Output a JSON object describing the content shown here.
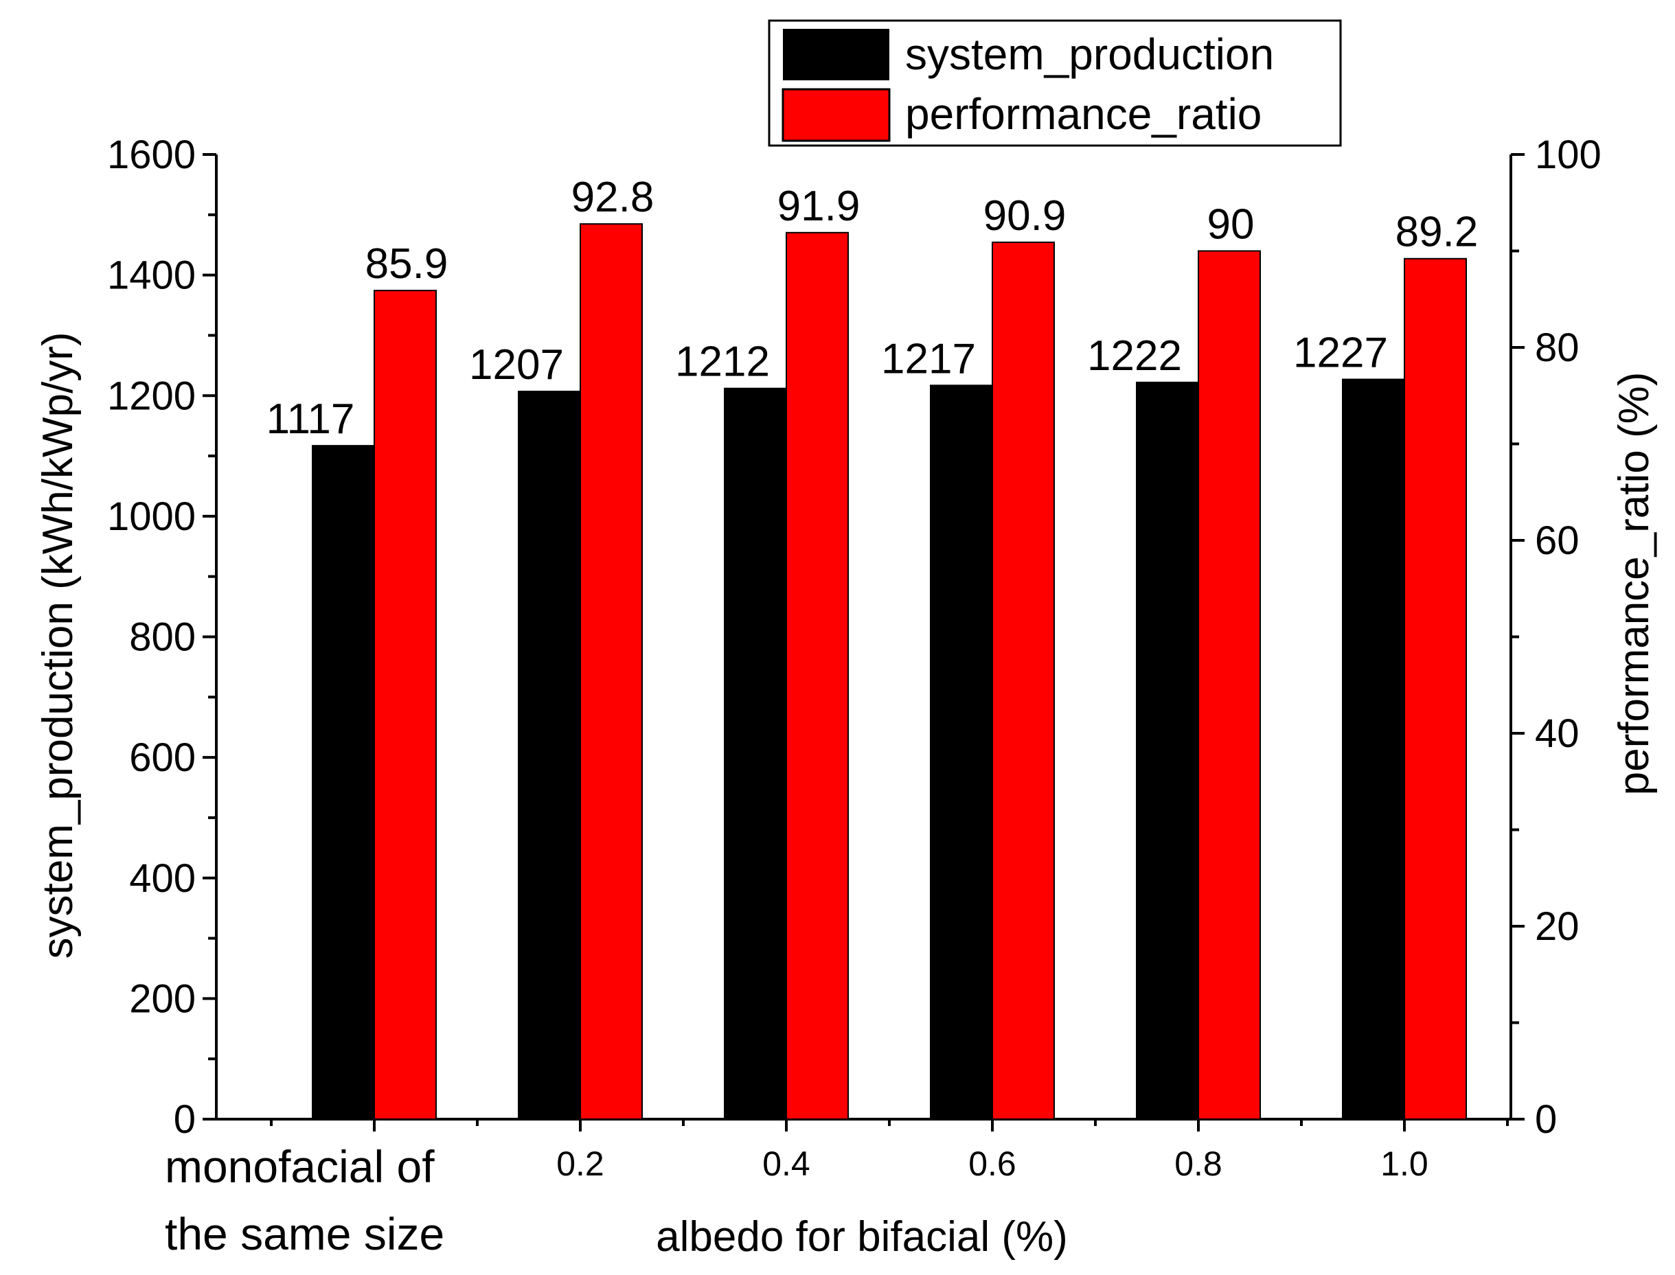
{
  "chart_data": {
    "type": "bar",
    "categories": [
      "monofacial of the same size",
      "0.2",
      "0.4",
      "0.6",
      "0.8",
      "1.0"
    ],
    "category_display": [
      [
        "monofacial of",
        "the same size"
      ],
      [
        "0.2"
      ],
      [
        "0.4"
      ],
      [
        "0.6"
      ],
      [
        "0.8"
      ],
      [
        "1.0"
      ]
    ],
    "series": [
      {
        "name": "system_production",
        "axis": "left",
        "color": "#000000",
        "values": [
          1117,
          1207,
          1212,
          1217,
          1222,
          1227
        ],
        "labels": [
          "1117",
          "1207",
          "1212",
          "1217",
          "1222",
          "1227"
        ]
      },
      {
        "name": "performance_ratio",
        "axis": "right",
        "color": "#ff0000",
        "values": [
          85.9,
          92.8,
          91.9,
          90.9,
          90,
          89.2
        ],
        "labels": [
          "85.9",
          "92.8",
          "91.9",
          "90.9",
          "90",
          "89.2"
        ]
      }
    ],
    "xlabel": "albedo for bifacial (%)",
    "ylabel": "system_production (kWh/kWp/yr)",
    "y2label": "performance_ratio (%)",
    "ylim": [
      0,
      1600
    ],
    "y2lim": [
      0,
      100
    ],
    "yticks": [
      "0",
      "200",
      "400",
      "600",
      "800",
      "1000",
      "1200",
      "1400",
      "1600"
    ],
    "y2ticks": [
      "0",
      "20",
      "40",
      "60",
      "80",
      "100"
    ],
    "legend": {
      "placement": "top-right",
      "entries": [
        "system_production",
        "performance_ratio"
      ]
    }
  }
}
